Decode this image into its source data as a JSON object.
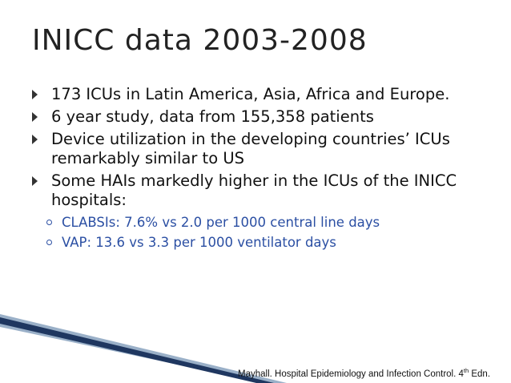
{
  "slide": {
    "title": "INICC data 2003-2008",
    "bullets": [
      {
        "text": "173 ICUs in Latin America, Asia, Africa and Europe."
      },
      {
        "text": "6 year study, data from 155,358 patients"
      },
      {
        "text": "Device utilization in the developing countries’ ICUs remarkably similar to US"
      },
      {
        "text": "Some HAIs markedly higher in the ICUs of the INICC hospitals:",
        "sub": [
          "CLABSIs: 7.6% vs 2.0 per 1000 central line days",
          "VAP: 13.6 vs 3.3 per 1000 ventilator days"
        ]
      }
    ],
    "citation": {
      "main": "Mayhall. Hospital Epidemiology and Infection Control. 4",
      "sup": "th",
      "end": " Edn."
    }
  },
  "colors": {
    "title": "#222222",
    "text": "#111111",
    "subtext": "#2b4fa3",
    "accent_dark": "#1f3760",
    "accent_light": "#9ab0c8"
  }
}
